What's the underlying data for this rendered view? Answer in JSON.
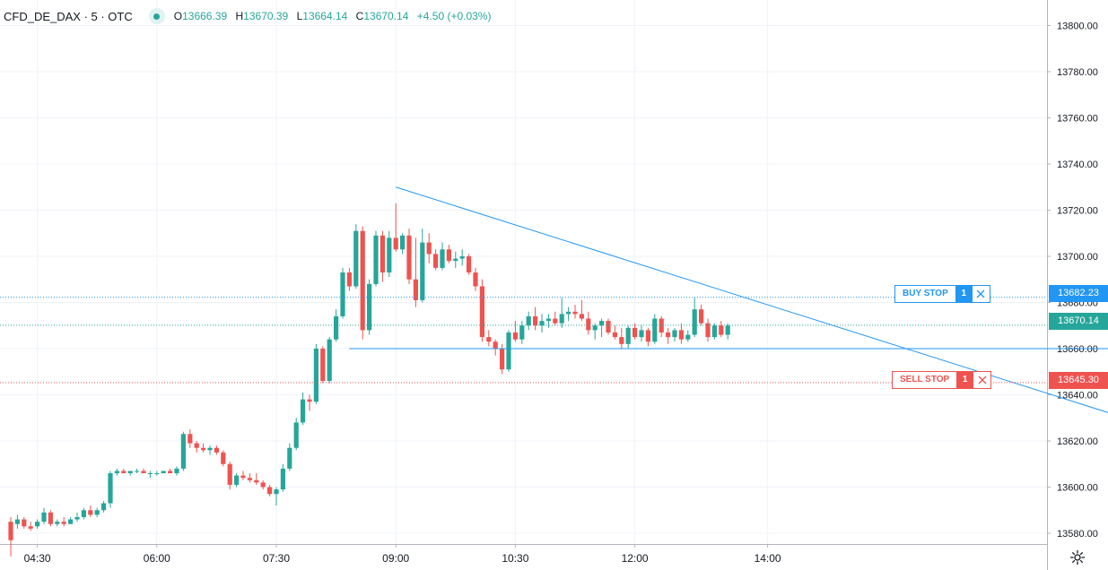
{
  "legend": {
    "symbol": "CFD_DE_DAX · 5 · OTC",
    "open_key": "O",
    "open": "13666.39",
    "high_key": "H",
    "high": "13670.39",
    "low_key": "L",
    "low": "13664.14",
    "close_key": "C",
    "close": "13670.14",
    "change": "+4.50 (+0.03%)"
  },
  "orders": {
    "buy": {
      "label": "BUY STOP",
      "qty": "1",
      "price": "13682.23"
    },
    "sell": {
      "label": "SELL STOP",
      "qty": "1",
      "price": "13645.30"
    }
  },
  "last_price": "13670.14",
  "colors": {
    "up": "#26a69a",
    "down": "#ef5350",
    "buy": "#2196f3",
    "sell": "#ef5350",
    "line": "#2196f3"
  },
  "icons": {
    "settings": "gear-icon",
    "close": "close-icon"
  },
  "chart_data": {
    "type": "candlestick",
    "title": "",
    "xlabel": "",
    "ylabel": "",
    "ylim": [
      13573,
      13810
    ],
    "grid": true,
    "x_ticks": [
      "04:30",
      "06:00",
      "07:30",
      "09:00",
      "10:30",
      "12:00",
      "14:00"
    ],
    "y_ticks": [
      13580,
      13600,
      13620,
      13640,
      13660,
      13680,
      13700,
      13720,
      13740,
      13760,
      13780,
      13800
    ],
    "candles": [
      [
        13585,
        13587,
        13570,
        13577
      ],
      [
        13584,
        13588,
        13582,
        13586
      ],
      [
        13586,
        13587,
        13582,
        13583
      ],
      [
        13583,
        13585,
        13581,
        13582
      ],
      [
        13583,
        13586,
        13582,
        13585
      ],
      [
        13585,
        13591,
        13584,
        13589
      ],
      [
        13589,
        13590,
        13583,
        13584
      ],
      [
        13584,
        13586,
        13583,
        13585
      ],
      [
        13585,
        13587,
        13583,
        13584
      ],
      [
        13584,
        13587,
        13584,
        13586
      ],
      [
        13586,
        13589,
        13585,
        13587
      ],
      [
        13587,
        13591,
        13586,
        13590
      ],
      [
        13590,
        13592,
        13587,
        13588
      ],
      [
        13588,
        13591,
        13587,
        13590
      ],
      [
        13590,
        13594,
        13589,
        13593
      ],
      [
        13593,
        13607,
        13591,
        13606
      ],
      [
        13606,
        13608,
        13605,
        13607
      ],
      [
        13607,
        13608,
        13606,
        13606
      ],
      [
        13606,
        13607,
        13605,
        13607
      ],
      [
        13607,
        13608,
        13606,
        13607
      ],
      [
        13607,
        13608,
        13606,
        13606
      ],
      [
        13606,
        13607,
        13604,
        13606
      ],
      [
        13606,
        13607,
        13605,
        13606
      ],
      [
        13606,
        13607,
        13606,
        13607
      ],
      [
        13607,
        13608,
        13606,
        13606
      ],
      [
        13606,
        13609,
        13605,
        13608
      ],
      [
        13608,
        13624,
        13607,
        13623
      ],
      [
        13623,
        13625,
        13617,
        13619
      ],
      [
        13619,
        13620,
        13615,
        13617
      ],
      [
        13617,
        13619,
        13615,
        13616
      ],
      [
        13616,
        13618,
        13614,
        13617
      ],
      [
        13617,
        13618,
        13614,
        13615
      ],
      [
        13615,
        13616,
        13609,
        13610
      ],
      [
        13610,
        13611,
        13599,
        13601
      ],
      [
        13601,
        13606,
        13600,
        13605
      ],
      [
        13605,
        13607,
        13603,
        13604
      ],
      [
        13604,
        13606,
        13602,
        13603
      ],
      [
        13603,
        13606,
        13601,
        13602
      ],
      [
        13602,
        13603,
        13599,
        13600
      ],
      [
        13600,
        13601,
        13596,
        13597
      ],
      [
        13597,
        13600,
        13592,
        13599
      ],
      [
        13599,
        13610,
        13598,
        13608
      ],
      [
        13608,
        13619,
        13607,
        13617
      ],
      [
        13617,
        13630,
        13616,
        13628
      ],
      [
        13628,
        13641,
        13627,
        13638
      ],
      [
        13638,
        13640,
        13633,
        13637
      ],
      [
        13637,
        13662,
        13636,
        13660
      ],
      [
        13660,
        13661,
        13645,
        13646
      ],
      [
        13646,
        13665,
        13645,
        13664
      ],
      [
        13664,
        13677,
        13663,
        13674
      ],
      [
        13674,
        13695,
        13673,
        13693
      ],
      [
        13693,
        13695,
        13685,
        13687
      ],
      [
        13687,
        13714,
        13686,
        13711
      ],
      [
        13711,
        13713,
        13664,
        13668
      ],
      [
        13668,
        13690,
        13666,
        13688
      ],
      [
        13688,
        13711,
        13687,
        13709
      ],
      [
        13709,
        13711,
        13689,
        13693
      ],
      [
        13693,
        13711,
        13691,
        13708
      ],
      [
        13708,
        13723,
        13702,
        13703
      ],
      [
        13703,
        13710,
        13701,
        13709
      ],
      [
        13709,
        13712,
        13688,
        13690
      ],
      [
        13690,
        13708,
        13678,
        13681
      ],
      [
        13681,
        13712,
        13680,
        13706
      ],
      [
        13706,
        13710,
        13697,
        13701
      ],
      [
        13701,
        13703,
        13694,
        13695
      ],
      [
        13695,
        13706,
        13694,
        13703
      ],
      [
        13703,
        13705,
        13697,
        13698
      ],
      [
        13698,
        13702,
        13695,
        13699
      ],
      [
        13699,
        13703,
        13696,
        13700
      ],
      [
        13700,
        13701,
        13692,
        13693
      ],
      [
        13693,
        13695,
        13685,
        13687
      ],
      [
        13687,
        13690,
        13663,
        13665
      ],
      [
        13665,
        13668,
        13661,
        13663
      ],
      [
        13663,
        13664,
        13657,
        13660
      ],
      [
        13660,
        13662,
        13649,
        13651
      ],
      [
        13651,
        13668,
        13650,
        13667
      ],
      [
        13667,
        13672,
        13663,
        13664
      ],
      [
        13664,
        13672,
        13662,
        13670
      ],
      [
        13670,
        13676,
        13668,
        13674
      ],
      [
        13674,
        13678,
        13668,
        13670
      ],
      [
        13670,
        13675,
        13667,
        13672
      ],
      [
        13672,
        13675,
        13669,
        13673
      ],
      [
        13673,
        13676,
        13670,
        13671
      ],
      [
        13671,
        13682,
        13669,
        13675
      ],
      [
        13675,
        13678,
        13672,
        13676
      ],
      [
        13676,
        13679,
        13673,
        13675
      ],
      [
        13675,
        13681,
        13672,
        13673
      ],
      [
        13673,
        13676,
        13666,
        13668
      ],
      [
        13668,
        13671,
        13664,
        13670
      ],
      [
        13670,
        13673,
        13665,
        13672
      ],
      [
        13672,
        13673,
        13666,
        13667
      ],
      [
        13667,
        13670,
        13664,
        13665
      ],
      [
        13665,
        13669,
        13660,
        13662
      ],
      [
        13662,
        13670,
        13660,
        13669
      ],
      [
        13669,
        13671,
        13664,
        13665
      ],
      [
        13665,
        13670,
        13663,
        13668
      ],
      [
        13668,
        13669,
        13661,
        13663
      ],
      [
        13663,
        13675,
        13662,
        13673
      ],
      [
        13673,
        13674,
        13665,
        13667
      ],
      [
        13667,
        13669,
        13662,
        13665
      ],
      [
        13665,
        13669,
        13663,
        13668
      ],
      [
        13668,
        13671,
        13662,
        13664
      ],
      [
        13664,
        13668,
        13663,
        13666
      ],
      [
        13666,
        13682,
        13665,
        13677
      ],
      [
        13677,
        13679,
        13670,
        13671
      ],
      [
        13671,
        13673,
        13663,
        13665
      ],
      [
        13665,
        13671,
        13664,
        13670
      ],
      [
        13670,
        13672,
        13665,
        13666
      ],
      [
        13666,
        13671,
        13664,
        13670
      ]
    ],
    "lines": [
      {
        "name": "",
        "from": [
          58,
          13730
        ],
        "to": [
          170,
          13628
        ]
      },
      {
        "name": "",
        "from": [
          51,
          13660
        ],
        "to": [
          170,
          13660
        ]
      }
    ]
  }
}
